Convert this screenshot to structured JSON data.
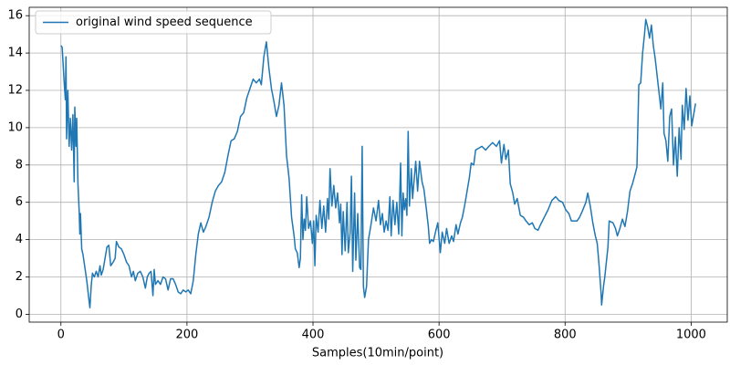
{
  "chart_data": {
    "type": "line",
    "xlabel": "Samples(10min/point)",
    "x": [
      0,
      2,
      5,
      7,
      8,
      9,
      11,
      13,
      15,
      17,
      19,
      21,
      22,
      24,
      25,
      27,
      29,
      30,
      31,
      33,
      35,
      38,
      41,
      44,
      46,
      48,
      50,
      53,
      56,
      59,
      62,
      64,
      67,
      70,
      73,
      76,
      79,
      83,
      86,
      88,
      92,
      96,
      100,
      104,
      108,
      112,
      115,
      118,
      122,
      126,
      130,
      134,
      137,
      140,
      143,
      146,
      148,
      150,
      154,
      158,
      162,
      166,
      170,
      174,
      178,
      182,
      186,
      190,
      194,
      198,
      202,
      206,
      210,
      214,
      218,
      222,
      226,
      230,
      235,
      240,
      245,
      250,
      255,
      260,
      265,
      270,
      275,
      280,
      285,
      290,
      295,
      300,
      305,
      310,
      315,
      318,
      322,
      326,
      330,
      334,
      338,
      342,
      346,
      350,
      354,
      358,
      362,
      366,
      370,
      372,
      375,
      378,
      380,
      382,
      384,
      386,
      388,
      390,
      393,
      396,
      399,
      401,
      403,
      405,
      408,
      411,
      414,
      417,
      420,
      423,
      425,
      427,
      430,
      433,
      436,
      439,
      442,
      444,
      446,
      448,
      451,
      454,
      456,
      459,
      461,
      463,
      466,
      468,
      471,
      474,
      476,
      478,
      480,
      482,
      485,
      488,
      492,
      496,
      500,
      504,
      507,
      510,
      513,
      516,
      519,
      522,
      524,
      527,
      530,
      533,
      536,
      539,
      541,
      543,
      545,
      547,
      549,
      551,
      553,
      556,
      558,
      563,
      566,
      569,
      573,
      576,
      580,
      583,
      585,
      588,
      591,
      595,
      598,
      602,
      605,
      609,
      612,
      616,
      620,
      623,
      627,
      630,
      634,
      637,
      641,
      644,
      648,
      651,
      655,
      658,
      663,
      668,
      674,
      679,
      685,
      691,
      696,
      699,
      703,
      706,
      710,
      713,
      717,
      720,
      724,
      729,
      734,
      738,
      743,
      748,
      752,
      757,
      761,
      767,
      773,
      779,
      785,
      790,
      796,
      801,
      806,
      810,
      815,
      819,
      823,
      827,
      833,
      836,
      840,
      844,
      848,
      851,
      854,
      857,
      858,
      861,
      863,
      868,
      870,
      876,
      880,
      883,
      887,
      891,
      895,
      899,
      903,
      907,
      911,
      914,
      917,
      920,
      923,
      926,
      928,
      931,
      934,
      937,
      940,
      943,
      947,
      952,
      955,
      957,
      960,
      963,
      966,
      969,
      972,
      975,
      978,
      981,
      984,
      986,
      989,
      992,
      995,
      998,
      1001,
      1004,
      1007
    ],
    "series": [
      {
        "name": "original wind speed sequence",
        "color": "#1f77b4",
        "values": [
          14.4,
          14.3,
          12.5,
          11.5,
          13.8,
          9.4,
          12,
          9,
          10.5,
          8.8,
          10.7,
          7.1,
          11.1,
          9,
          10.5,
          7,
          5.5,
          4.3,
          5.4,
          3.5,
          3.2,
          2.5,
          1.8,
          0.9,
          0.35,
          1.5,
          2.2,
          2,
          2.3,
          2,
          2.6,
          2.1,
          2.4,
          3,
          3.6,
          3.7,
          2.6,
          2.8,
          3,
          3.9,
          3.6,
          3.5,
          3.2,
          2.8,
          2.6,
          2,
          2.3,
          1.8,
          2.2,
          2.3,
          2,
          1.4,
          2,
          2.2,
          2.3,
          1,
          2.4,
          1.6,
          1.8,
          1.6,
          2,
          1.9,
          1.3,
          1.9,
          1.9,
          1.6,
          1.2,
          1.1,
          1.3,
          1.2,
          1.3,
          1.1,
          1.8,
          3.2,
          4.3,
          4.9,
          4.4,
          4.7,
          5.2,
          6,
          6.6,
          6.9,
          7.1,
          7.6,
          8.5,
          9.3,
          9.4,
          9.8,
          10.6,
          10.8,
          11.6,
          12.1,
          12.6,
          12.4,
          12.6,
          12.3,
          13.8,
          14.6,
          13.2,
          12.1,
          11.4,
          10.6,
          11.2,
          12.4,
          11.2,
          8.5,
          7.3,
          5.2,
          4.2,
          3.5,
          3.3,
          2.5,
          3,
          6.4,
          4,
          5.1,
          4.5,
          6.3,
          4.6,
          5,
          3.8,
          5,
          2.6,
          5.3,
          4.4,
          6.1,
          4.6,
          5.8,
          4.4,
          6.2,
          5.1,
          7.8,
          5.8,
          6.9,
          5.7,
          6.5,
          4.9,
          5.9,
          3.2,
          5.5,
          3.4,
          6,
          3.3,
          4.4,
          7.4,
          2.3,
          6.5,
          2.9,
          5.4,
          2.5,
          2.4,
          9,
          1.5,
          0.9,
          1.5,
          4,
          4.8,
          5.7,
          5,
          6.1,
          4.8,
          5.4,
          4.4,
          5,
          4.5,
          6.3,
          4.2,
          6.1,
          4.8,
          6,
          4.3,
          8.1,
          4.2,
          6.5,
          5.6,
          6.2,
          5.3,
          9.8,
          5.8,
          7.8,
          6.2,
          8.2,
          6.6,
          8.2,
          7.1,
          6.7,
          5.6,
          4.7,
          3.8,
          4,
          3.9,
          4.5,
          4.9,
          3.3,
          4.4,
          3.8,
          4.6,
          3.8,
          4.2,
          3.9,
          4.8,
          4.3,
          4.9,
          5.2,
          5.9,
          6.5,
          7.3,
          8.1,
          8,
          8.8,
          8.9,
          9,
          8.8,
          9,
          9.2,
          9,
          9.3,
          8.1,
          9.1,
          8.3,
          8.8,
          7,
          6.5,
          5.9,
          6.2,
          5.3,
          5.2,
          5,
          4.8,
          4.9,
          4.6,
          4.5,
          4.8,
          5.2,
          5.6,
          6.1,
          6.3,
          6.1,
          6,
          5.6,
          5.4,
          5,
          5,
          5,
          5.2,
          5.5,
          6,
          6.5,
          5.8,
          4.9,
          4.2,
          3.8,
          2.6,
          1.2,
          0.5,
          1.5,
          2,
          3.6,
          5,
          4.9,
          4.6,
          4.2,
          4.6,
          5.1,
          4.7,
          5.5,
          6.6,
          7,
          7.5,
          7.9,
          12.3,
          12.4,
          14,
          15,
          15.8,
          15.4,
          14.8,
          15.5,
          14.4,
          13.7,
          12.5,
          11,
          12.4,
          9.7,
          9.3,
          8.2,
          10.6,
          11,
          8,
          9.5,
          7.4,
          10,
          8.3,
          11.2,
          9.9,
          12.1,
          10.4,
          11.7,
          10.1,
          10.7,
          11.3
        ]
      }
    ],
    "xlim": [
      -50.35,
      1057.35
    ],
    "ylim": [
      -0.42,
      16.45
    ],
    "xticks": [
      0,
      200,
      400,
      600,
      800,
      1000
    ],
    "yticks": [
      0,
      2,
      4,
      6,
      8,
      10,
      12,
      14,
      16
    ],
    "grid": true,
    "legend": "upper left"
  }
}
